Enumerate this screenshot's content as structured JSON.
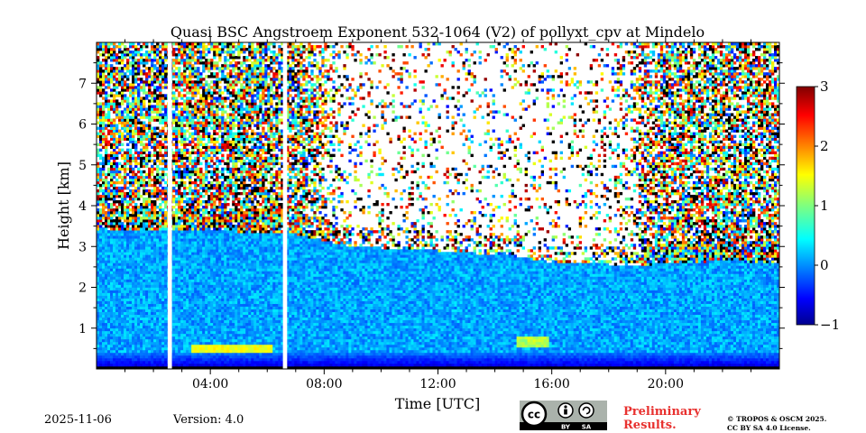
{
  "chart_data": {
    "type": "heatmap",
    "title": "Quasi BSC Angstroem Exponent 532-1064 (V2) of pollyxt_cpv at Mindelo",
    "xlabel": "Time [UTC]",
    "ylabel": "Height [km]",
    "xlim_hours": [
      0,
      24
    ],
    "ylim_km": [
      0,
      8
    ],
    "x_ticks": [
      {
        "hour": 4,
        "label": "04:00"
      },
      {
        "hour": 8,
        "label": "08:00"
      },
      {
        "hour": 12,
        "label": "12:00"
      },
      {
        "hour": 16,
        "label": "16:00"
      },
      {
        "hour": 20,
        "label": "20:00"
      }
    ],
    "y_ticks": [
      {
        "km": 1,
        "label": "1"
      },
      {
        "km": 2,
        "label": "2"
      },
      {
        "km": 3,
        "label": "3"
      },
      {
        "km": 4,
        "label": "4"
      },
      {
        "km": 5,
        "label": "5"
      },
      {
        "km": 6,
        "label": "6"
      },
      {
        "km": 7,
        "label": "7"
      }
    ],
    "colorbar": {
      "min": -1,
      "max": 3,
      "colormap": "jet",
      "ticks": [
        {
          "value": -1,
          "label": "−1"
        },
        {
          "value": 0,
          "label": "0"
        },
        {
          "value": 1,
          "label": "1"
        },
        {
          "value": 2,
          "label": "2"
        },
        {
          "value": 3,
          "label": "3"
        }
      ]
    },
    "layer_top_km": [
      {
        "hour": 0,
        "km": 3.4
      },
      {
        "hour": 4,
        "km": 3.4
      },
      {
        "hour": 7,
        "km": 3.3
      },
      {
        "hour": 9,
        "km": 3.0
      },
      {
        "hour": 12,
        "km": 2.9
      },
      {
        "hour": 15,
        "km": 2.75
      },
      {
        "hour": 16,
        "km": 2.6
      },
      {
        "hour": 19,
        "km": 2.55
      },
      {
        "hour": 22,
        "km": 2.65
      },
      {
        "hour": 24,
        "km": 2.6
      }
    ],
    "data_gaps_hours": [
      [
        2.5,
        2.65
      ],
      [
        6.55,
        6.7
      ]
    ],
    "aerosol_layer_value": 0.15,
    "free_troposphere_value_range": [
      -0.5,
      3
    ]
  },
  "footer": {
    "date": "2025-11-06",
    "version": "Version: 4.0",
    "preliminary_line1": "Preliminary",
    "preliminary_line2": "Results.",
    "copyright_line1": "© TROPOS & OSCM 2025.",
    "copyright_line2": "CC BY SA 4.0 License.",
    "cc_by": "BY",
    "cc_sa": "SA",
    "cc_mark": "cc"
  }
}
